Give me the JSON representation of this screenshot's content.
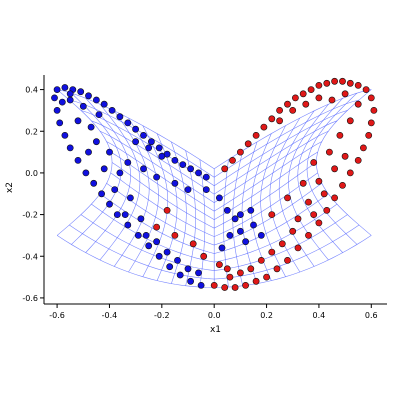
{
  "chart_data": {
    "type": "scatter",
    "xlabel": "x1",
    "ylabel": "x2",
    "xlim": [
      -0.65,
      0.66
    ],
    "ylim": [
      -0.61,
      0.47
    ],
    "x_ticks": [
      -0.6,
      -0.4,
      -0.2,
      0.0,
      0.2,
      0.4,
      0.6
    ],
    "x_tick_labels": [
      "-0.6",
      "-0.4",
      "-0.2",
      "0.0",
      "0.2",
      "0.4",
      "0.6"
    ],
    "y_ticks": [
      -0.6,
      -0.4,
      -0.2,
      0.0,
      0.2,
      0.4
    ],
    "y_tick_labels": [
      "-0.6",
      "-0.4",
      "-0.2",
      "0.0",
      "0.2",
      "0.4"
    ],
    "grid": false,
    "legend": "none",
    "colors": {
      "class_a": "#1010e0",
      "class_b": "#e01818",
      "marker_edge": "#101010",
      "mesh": "#4a5cff",
      "axis": "#000000"
    },
    "series": [
      {
        "points": [
          [
            -0.6,
            0.4
          ],
          [
            -0.57,
            0.41
          ],
          [
            -0.54,
            0.4
          ],
          [
            -0.51,
            0.39
          ],
          [
            -0.48,
            0.37
          ],
          [
            -0.45,
            0.35
          ],
          [
            -0.42,
            0.33
          ],
          [
            -0.39,
            0.3
          ],
          [
            -0.36,
            0.27
          ],
          [
            -0.33,
            0.24
          ],
          [
            -0.3,
            0.21
          ],
          [
            -0.27,
            0.18
          ],
          [
            -0.24,
            0.15
          ],
          [
            -0.21,
            0.12
          ],
          [
            -0.18,
            0.09
          ],
          [
            -0.15,
            0.06
          ],
          [
            -0.12,
            0.04
          ],
          [
            -0.09,
            0.02
          ],
          [
            -0.06,
            0.0
          ],
          [
            -0.03,
            -0.02
          ],
          [
            -0.61,
            0.36
          ],
          [
            -0.6,
            0.3
          ],
          [
            -0.59,
            0.24
          ],
          [
            -0.57,
            0.18
          ],
          [
            -0.55,
            0.12
          ],
          [
            -0.52,
            0.06
          ],
          [
            -0.49,
            0.0
          ],
          [
            -0.46,
            -0.05
          ],
          [
            -0.43,
            -0.1
          ],
          [
            -0.4,
            -0.15
          ],
          [
            -0.37,
            -0.2
          ],
          [
            -0.33,
            -0.25
          ],
          [
            -0.29,
            -0.3
          ],
          [
            -0.25,
            -0.35
          ],
          [
            -0.21,
            -0.4
          ],
          [
            -0.17,
            -0.45
          ],
          [
            -0.13,
            -0.49
          ],
          [
            -0.09,
            -0.52
          ],
          [
            -0.05,
            -0.54
          ],
          [
            -0.55,
            0.35
          ],
          [
            -0.5,
            0.32
          ],
          [
            -0.52,
            0.25
          ],
          [
            -0.47,
            0.22
          ],
          [
            -0.45,
            0.15
          ],
          [
            -0.4,
            0.1
          ],
          [
            -0.42,
            0.02
          ],
          [
            -0.36,
            0.0
          ],
          [
            -0.38,
            -0.08
          ],
          [
            -0.32,
            -0.12
          ],
          [
            -0.34,
            -0.2
          ],
          [
            -0.28,
            -0.22
          ],
          [
            -0.26,
            -0.3
          ],
          [
            -0.22,
            -0.33
          ],
          [
            -0.18,
            -0.38
          ],
          [
            -0.14,
            -0.42
          ],
          [
            -0.1,
            -0.46
          ],
          [
            -0.06,
            -0.48
          ],
          [
            -0.3,
            0.15
          ],
          [
            -0.25,
            0.12
          ],
          [
            -0.2,
            0.08
          ],
          [
            -0.33,
            0.05
          ],
          [
            -0.27,
            0.02
          ],
          [
            -0.22,
            -0.02
          ],
          [
            -0.15,
            -0.05
          ],
          [
            -0.1,
            -0.08
          ],
          [
            -0.03,
            -0.08
          ],
          [
            0.02,
            -0.12
          ],
          [
            0.05,
            -0.18
          ],
          [
            0.08,
            -0.22
          ],
          [
            0.1,
            -0.28
          ],
          [
            0.06,
            -0.3
          ],
          [
            0.03,
            -0.36
          ],
          [
            0.1,
            -0.2
          ],
          [
            0.12,
            -0.33
          ],
          [
            0.15,
            -0.25
          ],
          [
            0.18,
            -0.3
          ],
          [
            0.14,
            -0.18
          ],
          [
            -0.55,
            0.38
          ],
          [
            -0.58,
            0.34
          ],
          [
            -0.44,
            0.28
          ],
          [
            -0.48,
            0.1
          ]
        ]
      },
      {
        "points": [
          [
            0.04,
            0.02
          ],
          [
            0.07,
            0.06
          ],
          [
            0.1,
            0.1
          ],
          [
            0.13,
            0.14
          ],
          [
            0.16,
            0.18
          ],
          [
            0.19,
            0.22
          ],
          [
            0.22,
            0.26
          ],
          [
            0.25,
            0.3
          ],
          [
            0.28,
            0.33
          ],
          [
            0.31,
            0.36
          ],
          [
            0.34,
            0.38
          ],
          [
            0.37,
            0.4
          ],
          [
            0.4,
            0.42
          ],
          [
            0.43,
            0.43
          ],
          [
            0.46,
            0.44
          ],
          [
            0.49,
            0.44
          ],
          [
            0.52,
            0.43
          ],
          [
            0.55,
            0.42
          ],
          [
            0.58,
            0.4
          ],
          [
            0.6,
            0.36
          ],
          [
            0.61,
            0.3
          ],
          [
            0.6,
            0.24
          ],
          [
            0.59,
            0.18
          ],
          [
            0.57,
            0.12
          ],
          [
            0.55,
            0.06
          ],
          [
            0.52,
            0.0
          ],
          [
            0.49,
            -0.06
          ],
          [
            0.46,
            -0.12
          ],
          [
            0.43,
            -0.18
          ],
          [
            0.4,
            -0.24
          ],
          [
            0.36,
            -0.3
          ],
          [
            0.32,
            -0.36
          ],
          [
            0.28,
            -0.42
          ],
          [
            0.24,
            -0.46
          ],
          [
            0.2,
            -0.5
          ],
          [
            0.16,
            -0.52
          ],
          [
            0.12,
            -0.54
          ],
          [
            0.08,
            -0.55
          ],
          [
            0.04,
            -0.55
          ],
          [
            0.0,
            -0.54
          ],
          [
            0.5,
            0.38
          ],
          [
            0.45,
            0.35
          ],
          [
            0.55,
            0.33
          ],
          [
            0.52,
            0.25
          ],
          [
            0.48,
            0.18
          ],
          [
            0.44,
            0.1
          ],
          [
            0.5,
            0.08
          ],
          [
            0.46,
            0.02
          ],
          [
            0.4,
            -0.04
          ],
          [
            0.42,
            -0.1
          ],
          [
            0.36,
            -0.14
          ],
          [
            0.38,
            -0.2
          ],
          [
            0.32,
            -0.22
          ],
          [
            0.3,
            -0.28
          ],
          [
            0.26,
            -0.34
          ],
          [
            0.22,
            -0.38
          ],
          [
            0.18,
            -0.42
          ],
          [
            0.14,
            -0.46
          ],
          [
            0.1,
            -0.48
          ],
          [
            0.06,
            -0.5
          ],
          [
            0.3,
            0.3
          ],
          [
            0.35,
            0.33
          ],
          [
            0.25,
            0.25
          ],
          [
            0.4,
            0.36
          ],
          [
            0.38,
            0.05
          ],
          [
            0.34,
            -0.05
          ],
          [
            0.28,
            -0.12
          ],
          [
            -0.18,
            -0.18
          ],
          [
            -0.22,
            -0.26
          ],
          [
            -0.15,
            -0.3
          ],
          [
            -0.08,
            -0.34
          ],
          [
            -0.04,
            -0.4
          ],
          [
            0.02,
            -0.44
          ],
          [
            0.05,
            -0.46
          ],
          [
            0.22,
            -0.2
          ]
        ]
      }
    ]
  }
}
